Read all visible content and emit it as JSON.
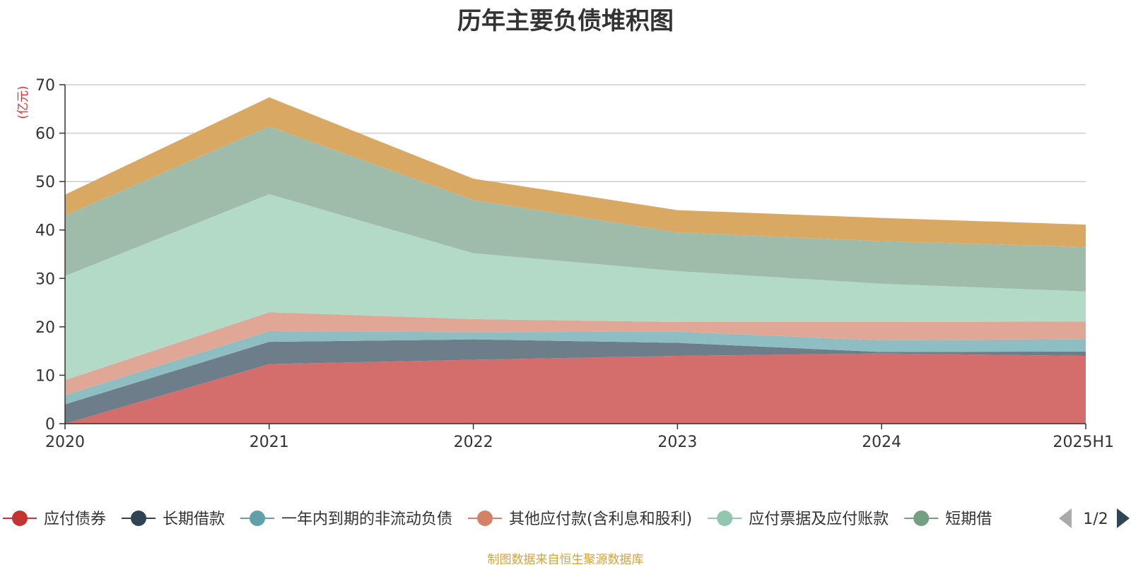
{
  "chart_data": {
    "type": "area",
    "stacked": true,
    "title": "历年主要负债堆积图",
    "ylabel": "(亿元)",
    "xlabel": "",
    "categories": [
      "2020",
      "2021",
      "2022",
      "2023",
      "2024",
      "2025H1"
    ],
    "ylim": [
      0,
      70
    ],
    "yticks": [
      0,
      10,
      20,
      30,
      40,
      50,
      60,
      70
    ],
    "grid": true,
    "legend_position": "bottom",
    "series": [
      {
        "name": "应付债券",
        "values": [
          0,
          12.3,
          13.2,
          14.0,
          14.5,
          14.0
        ],
        "line_color": "#c23531",
        "fill_color": "#d46e6d"
      },
      {
        "name": "长期借款",
        "values": [
          4.0,
          4.6,
          4.2,
          2.7,
          0.3,
          0.9
        ],
        "line_color": "#2f4554",
        "fill_color": "#6d7d89"
      },
      {
        "name": "一年内到期的非流动负债",
        "values": [
          1.9,
          2.2,
          1.5,
          2.3,
          2.4,
          2.6
        ],
        "line_color": "#61a0a8",
        "fill_color": "#8fbec2"
      },
      {
        "name": "其他应付款(含利息和股利)",
        "values": [
          3.1,
          3.9,
          2.7,
          2.0,
          3.8,
          3.6
        ],
        "line_color": "#d48265",
        "fill_color": "#e0a796"
      },
      {
        "name": "应付票据及应付账款",
        "values": [
          21.5,
          24.4,
          13.6,
          10.5,
          7.9,
          6.2
        ],
        "line_color": "#91c7ae",
        "fill_color": "#b3d9c7"
      },
      {
        "name": "短期借款",
        "values": [
          12.5,
          14.0,
          11.0,
          8.0,
          8.8,
          9.2
        ],
        "line_color": "#749f83",
        "fill_color": "#9fbba9"
      },
      {
        "name": "",
        "values": [
          4.3,
          6.0,
          4.4,
          4.6,
          4.8,
          4.6
        ],
        "line_color": "#ca8622",
        "fill_color": "#d9a863",
        "in_legend": false
      }
    ]
  },
  "legend": {
    "page_indicator": "1/2",
    "visible_series_count": 6,
    "last_label_visible": "短期借"
  },
  "source_note": "制图数据来自恒生聚源数据库",
  "colors": {
    "axis": "#333333",
    "grid": "#cccccc",
    "ylabel": "#e03030",
    "source_note": "#d9a13a",
    "pager_disabled": "#aaaaaa",
    "pager_active": "#2f4554"
  }
}
